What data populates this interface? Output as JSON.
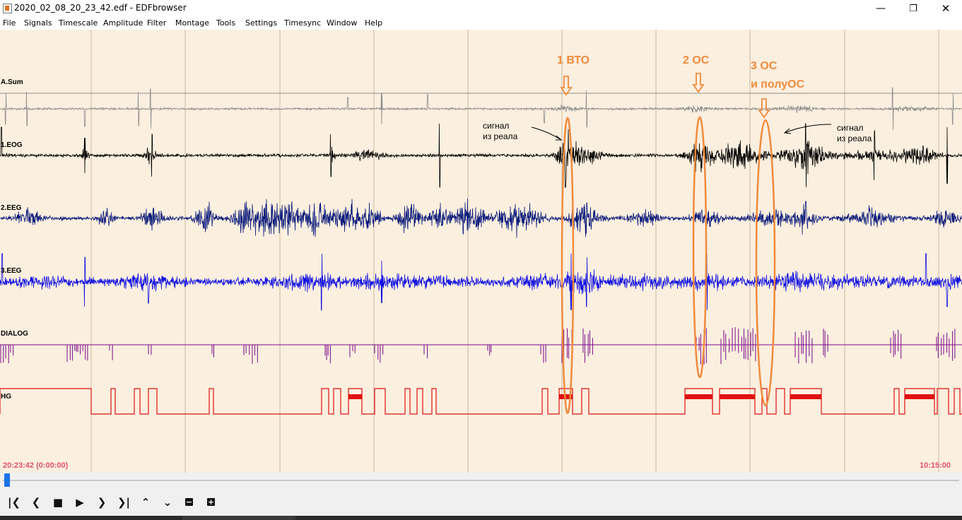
{
  "window": {
    "title": "2020_02_08_20_23_42.edf - EDFbrowser",
    "minimize_icon": "minimize-icon",
    "maximize_icon": "restore-icon",
    "close_icon": "close-icon"
  },
  "menu": [
    "File",
    "Signals",
    "Timescale",
    "Amplitude",
    "Filter",
    "Montage",
    "Tools",
    "Settings",
    "Timesync",
    "Window",
    "Help"
  ],
  "signals": [
    {
      "label": "A.Sum",
      "color": "#8c8c8c"
    },
    {
      "label": "1.EOG",
      "color": "#000000"
    },
    {
      "label": "2.EEG",
      "color": "#0a1a7a"
    },
    {
      "label": "3.EEG",
      "color": "#1010e0"
    },
    {
      "label": "DIALOG",
      "color": "#7a0a8a"
    },
    {
      "label": "HG",
      "color": "#e01010"
    }
  ],
  "time": {
    "start": "20:23:42 (0:00:00)",
    "end": "10:15:00"
  },
  "annotations": {
    "marker1": "1 ВТО",
    "marker2": "2 ОС",
    "marker3_line1": "3 ОС",
    "marker3_line2": "и полуОС",
    "note_left_line1": "сигнал",
    "note_left_line2": "из реала",
    "note_right_line1": "сигнал",
    "note_right_line2": "из реала"
  },
  "colors": {
    "plot_background": "#fbefdf",
    "annotation_orange": "#f08a3c",
    "time_label": "#e05070",
    "scroll_handle": "#1a73e8"
  },
  "toolbar_icons": [
    "skip-to-start-icon",
    "step-back-icon",
    "stop-icon",
    "play-icon",
    "step-forward-icon",
    "skip-to-end-icon",
    "scroll-up-icon",
    "scroll-down-icon",
    "zoom-out-icon",
    "zoom-in-icon"
  ],
  "scrollbar": {
    "position_fraction": 0.0
  }
}
